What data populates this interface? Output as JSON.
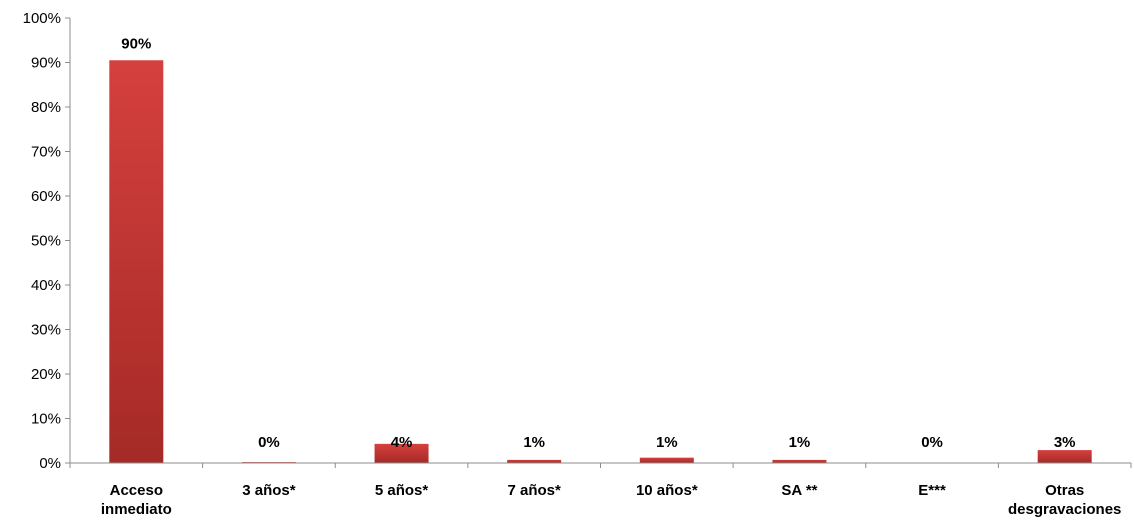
{
  "chart_data": {
    "type": "bar",
    "categories": [
      [
        "Acceso",
        "inmediato"
      ],
      [
        "3 años*"
      ],
      [
        "5 años*"
      ],
      [
        "7 años*"
      ],
      [
        "10 años*"
      ],
      [
        "SA **"
      ],
      [
        "E***"
      ],
      [
        "Otras",
        "desgravaciones"
      ]
    ],
    "values": [
      90.5,
      0.2,
      4.3,
      0.7,
      1.2,
      0.7,
      0.0,
      2.9
    ],
    "data_labels": [
      "90%",
      "0%",
      "4%",
      "1%",
      "1%",
      "1%",
      "0%",
      "3%"
    ],
    "ylim": [
      0,
      100
    ],
    "yticks": [
      0,
      10,
      20,
      30,
      40,
      50,
      60,
      70,
      80,
      90,
      100
    ],
    "ytick_labels": [
      "0%",
      "10%",
      "20%",
      "30%",
      "40%",
      "50%",
      "60%",
      "70%",
      "80%",
      "90%",
      "100%"
    ],
    "grid": false,
    "legend": "none",
    "bar_color_top": "#d5403d",
    "bar_color_bottom": "#a52a27"
  }
}
